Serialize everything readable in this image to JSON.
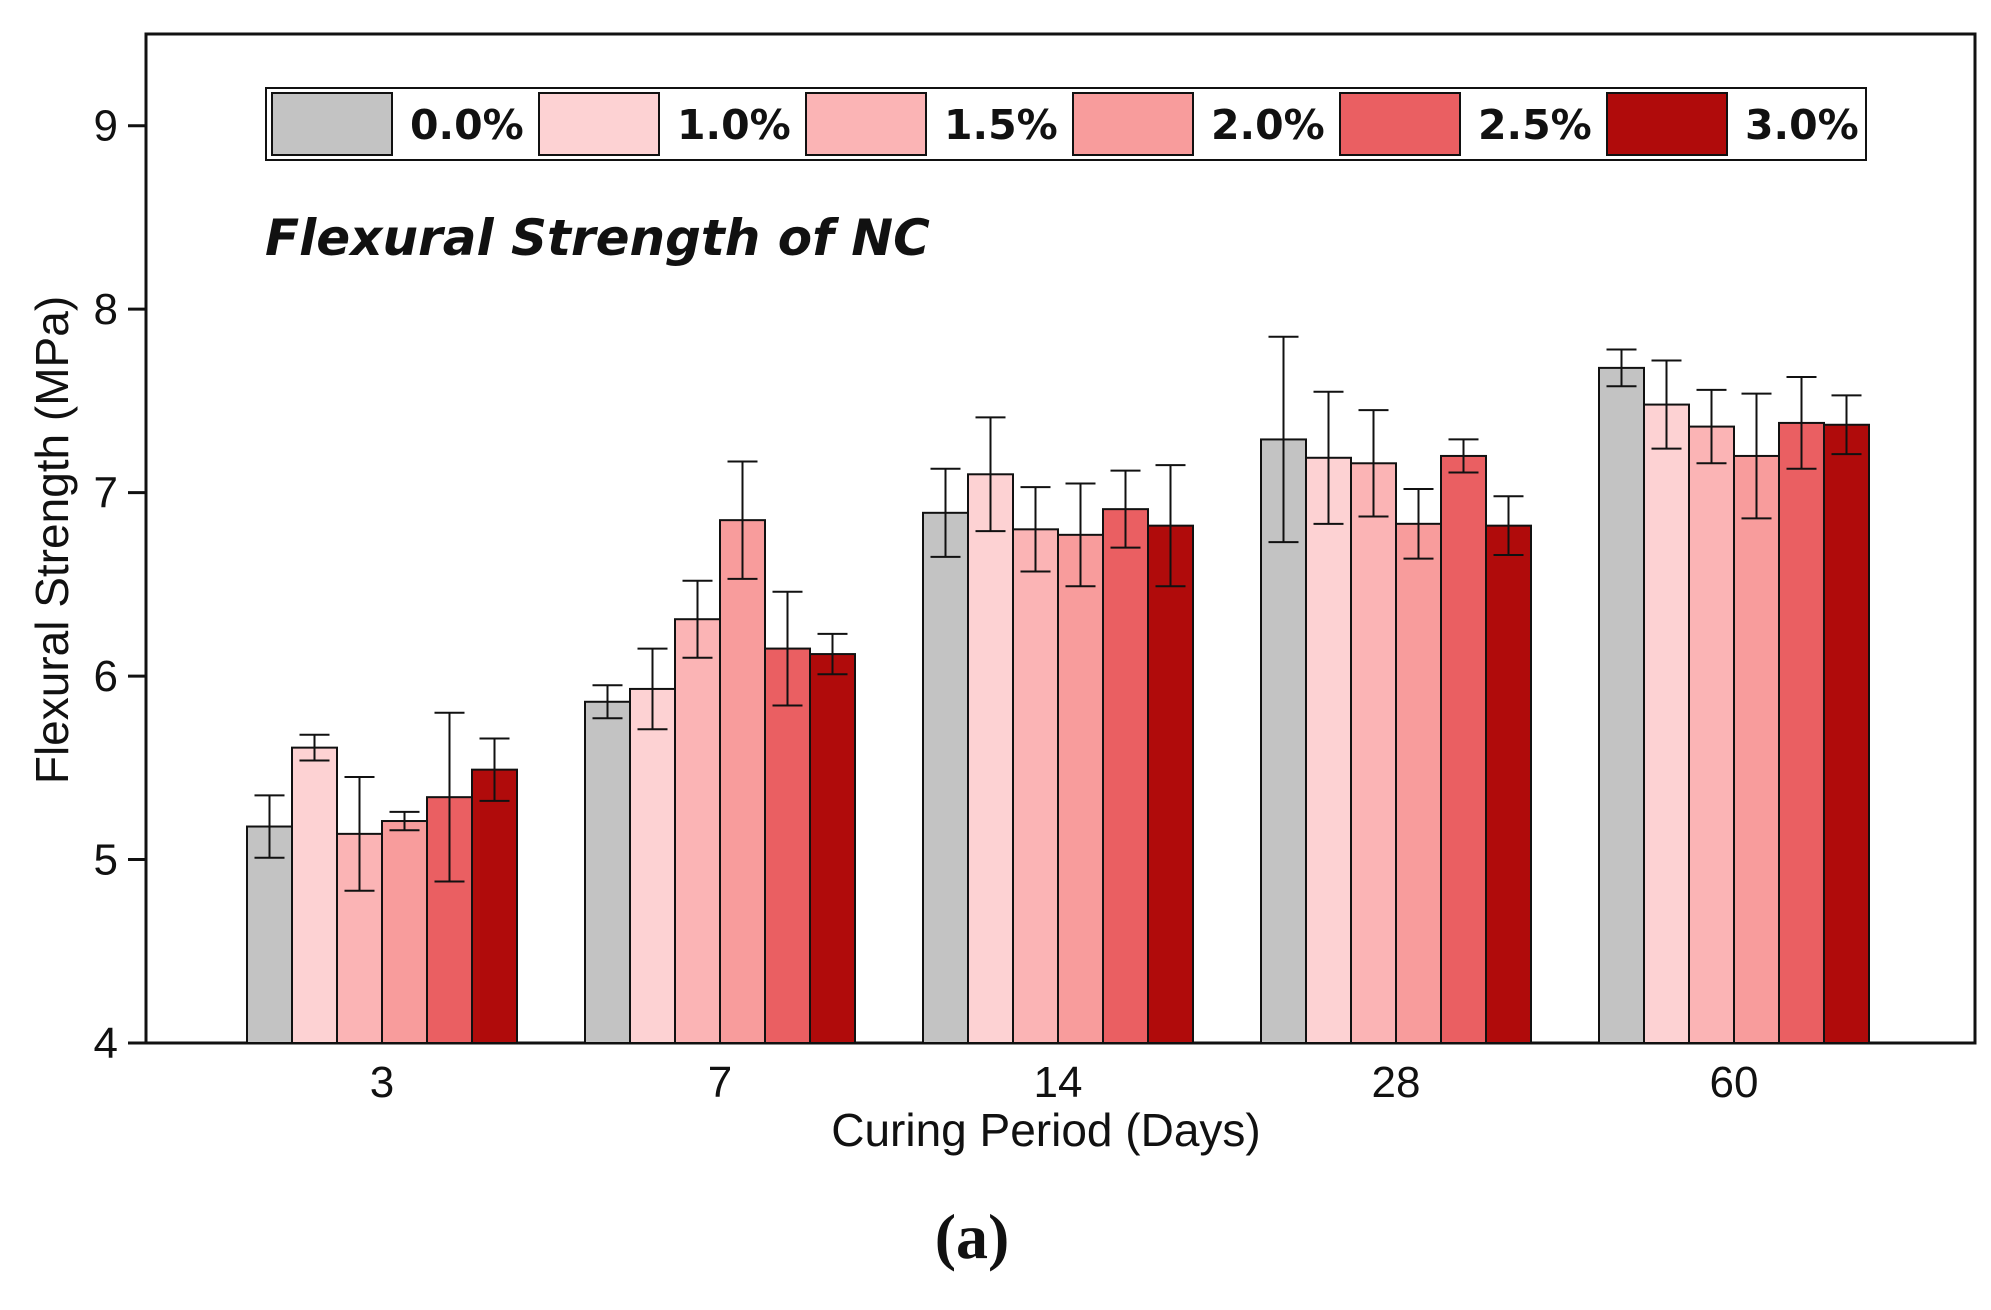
{
  "chart_data": {
    "type": "bar",
    "title": "Flexural Strength of NC",
    "xlabel": "Curing Period  (Days)",
    "ylabel": "Flexural Strength  (MPa)",
    "panel_label": "(a)",
    "ylim": [
      4,
      9.5
    ],
    "yticks": [
      4,
      5,
      6,
      7,
      8,
      9
    ],
    "categories": [
      "3",
      "7",
      "14",
      "28",
      "60"
    ],
    "legend_position": "top",
    "series": [
      {
        "name": "0.0%",
        "color": "#c3c3c3",
        "values": [
          5.18,
          5.86,
          6.89,
          7.29,
          7.68
        ],
        "errors": [
          0.17,
          0.09,
          0.24,
          0.56,
          0.1
        ]
      },
      {
        "name": "1.0%",
        "color": "#fdd2d3",
        "values": [
          5.61,
          5.93,
          7.1,
          7.19,
          7.48
        ],
        "errors": [
          0.07,
          0.22,
          0.31,
          0.36,
          0.24
        ]
      },
      {
        "name": "1.5%",
        "color": "#fbb4b5",
        "values": [
          5.14,
          6.31,
          6.8,
          7.16,
          7.36
        ],
        "errors": [
          0.31,
          0.21,
          0.23,
          0.29,
          0.2
        ]
      },
      {
        "name": "2.0%",
        "color": "#f89c9c",
        "values": [
          5.21,
          6.85,
          6.77,
          6.83,
          7.2
        ],
        "errors": [
          0.05,
          0.32,
          0.28,
          0.19,
          0.34
        ]
      },
      {
        "name": "2.5%",
        "color": "#ea5f62",
        "values": [
          5.34,
          6.15,
          6.91,
          7.2,
          7.38
        ],
        "errors": [
          0.46,
          0.31,
          0.21,
          0.09,
          0.25
        ]
      },
      {
        "name": "3.0%",
        "color": "#b00b0b",
        "values": [
          5.49,
          6.12,
          6.82,
          6.82,
          7.37
        ],
        "errors": [
          0.17,
          0.11,
          0.33,
          0.16,
          0.16
        ]
      }
    ]
  }
}
